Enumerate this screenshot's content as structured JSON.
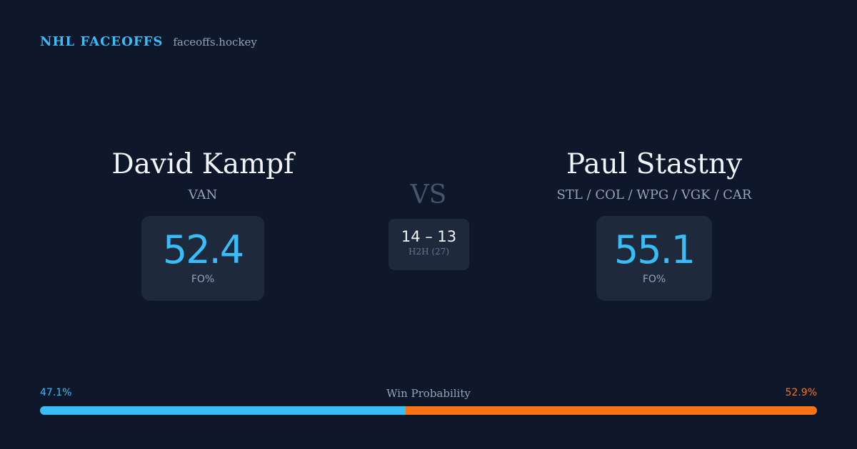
{
  "brand": {
    "name": "NHL FACEOFFS",
    "domain": "faceoffs.hockey"
  },
  "players": {
    "left": {
      "name": "David Kampf",
      "teams": "VAN",
      "fo_pct": "52.4",
      "fo_label": "FO%"
    },
    "right": {
      "name": "Paul Stastny",
      "teams": "STL / COL / WPG / VGK / CAR",
      "fo_pct": "55.1",
      "fo_label": "FO%"
    }
  },
  "matchup": {
    "vs_label": "VS",
    "h2h_score": "14 – 13",
    "h2h_label": "H2H (27)"
  },
  "win_probability": {
    "title": "Win Probability",
    "left_label": "47.1%",
    "right_label": "52.9%",
    "left_value": 47.1,
    "right_value": 52.9
  },
  "colors": {
    "background": "#0f172a",
    "card": "#1e293b",
    "accent_blue": "#38bdf8",
    "accent_orange": "#f97316",
    "text_primary": "#f1f5f9",
    "text_muted": "#94a3b8"
  }
}
